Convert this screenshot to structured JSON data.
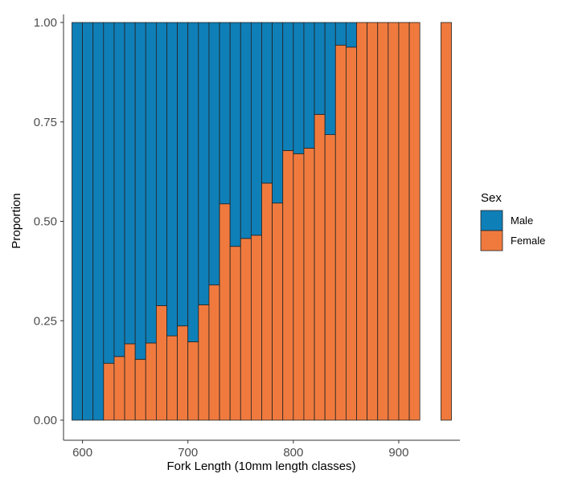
{
  "chart_data": {
    "type": "bar",
    "stacked": "proportion",
    "xlabel": "Fork Length (10mm length classes)",
    "ylabel": "Proportion",
    "xlim": [
      582,
      958
    ],
    "ylim": [
      0,
      1
    ],
    "x_ticks": [
      600,
      700,
      800,
      900
    ],
    "y_ticks": [
      0.0,
      0.25,
      0.5,
      0.75,
      1.0
    ],
    "y_tick_labels": [
      "0.00",
      "0.25",
      "0.50",
      "0.75",
      "1.00"
    ],
    "bin_width": 10,
    "x": [
      595,
      605,
      615,
      625,
      635,
      645,
      655,
      665,
      675,
      685,
      695,
      705,
      715,
      725,
      735,
      745,
      755,
      765,
      775,
      785,
      795,
      805,
      815,
      825,
      835,
      845,
      855,
      865,
      875,
      885,
      895,
      905,
      915,
      945
    ],
    "series": [
      {
        "name": "Male",
        "color": "#0F7FB8",
        "values": [
          1,
          1,
          1,
          0.857,
          0.84,
          0.808,
          0.847,
          0.806,
          0.712,
          0.788,
          0.763,
          0.803,
          0.71,
          0.66,
          0.456,
          0.563,
          0.543,
          0.535,
          0.404,
          0.454,
          0.322,
          0.33,
          0.316,
          0.231,
          0.282,
          0.057,
          0.062,
          0,
          0,
          0,
          0,
          0,
          0,
          0
        ]
      },
      {
        "name": "Female",
        "color": "#F07A3E",
        "values": [
          0,
          0,
          0,
          0.143,
          0.16,
          0.192,
          0.153,
          0.194,
          0.288,
          0.212,
          0.237,
          0.197,
          0.29,
          0.34,
          0.544,
          0.437,
          0.457,
          0.465,
          0.596,
          0.546,
          0.678,
          0.67,
          0.684,
          0.769,
          0.718,
          0.943,
          0.938,
          1,
          1,
          1,
          1,
          1,
          1,
          1
        ]
      }
    ],
    "legend": {
      "title": "Sex",
      "position": "right"
    },
    "grid": false
  }
}
